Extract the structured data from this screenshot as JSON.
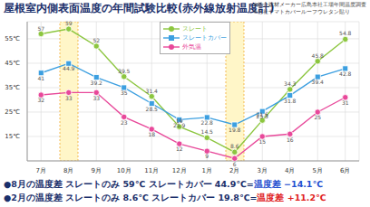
{
  "chart_data": {
    "type": "line",
    "title": "屋根室内側表面温度の年間試験比較(赤外線放射温度計)",
    "notes": [
      "※総合建材メーカー広島本社工場年間温度調査",
      "※当社ヤマトカバールーフウレタン貼り"
    ],
    "categories": [
      "7月",
      "8月",
      "9月",
      "10月",
      "11月",
      "12月",
      "1月",
      "2月",
      "3月",
      "4月",
      "5月",
      "6月"
    ],
    "highlight": [
      "8月",
      "2月"
    ],
    "series": [
      {
        "name": "スレート",
        "color": "#8cc63f",
        "marker": "circle",
        "values": [
          57,
          59,
          52,
          39.5,
          31.4,
          19,
          14.5,
          8.6,
          21.6,
          34.3,
          45.8,
          54.8
        ]
      },
      {
        "name": "スレートカバー",
        "color": "#3c9fe0",
        "marker": "square",
        "values": [
          41,
          44.9,
          39.2,
          35,
          28.5,
          21.9,
          22.8,
          19.8,
          25.3,
          31.8,
          39.4,
          42.8
        ]
      },
      {
        "name": "外気温",
        "color": "#e8489a",
        "marker": "circle",
        "values": [
          32,
          33,
          33,
          23,
          18,
          12,
          9,
          6,
          15,
          16,
          25,
          31
        ]
      }
    ],
    "ylim": [
      5,
      62
    ],
    "yticks": [
      {
        "value": 15,
        "label": "15℃"
      },
      {
        "value": 25,
        "label": "25℃"
      },
      {
        "value": 35,
        "label": "35℃"
      },
      {
        "value": 45,
        "label": "45℃"
      },
      {
        "value": 55,
        "label": "55℃"
      }
    ],
    "grid": true,
    "data_labels": true,
    "legend": "top",
    "summary": [
      [
        {
          "text": "●8月の温度差 スレートのみ 59℃ スレートカバー 44.9℃=",
          "color": "#1a2f6b"
        },
        {
          "text": "温度差 −14.1℃",
          "color": "#1f4fd0"
        }
      ],
      [
        {
          "text": "●2月の温度差 スレートのみ 8.6℃ スレートカバー 19.8℃=",
          "color": "#1a2f6b"
        },
        {
          "text": "温度差 +11.2℃",
          "color": "#e0201c"
        }
      ]
    ]
  }
}
